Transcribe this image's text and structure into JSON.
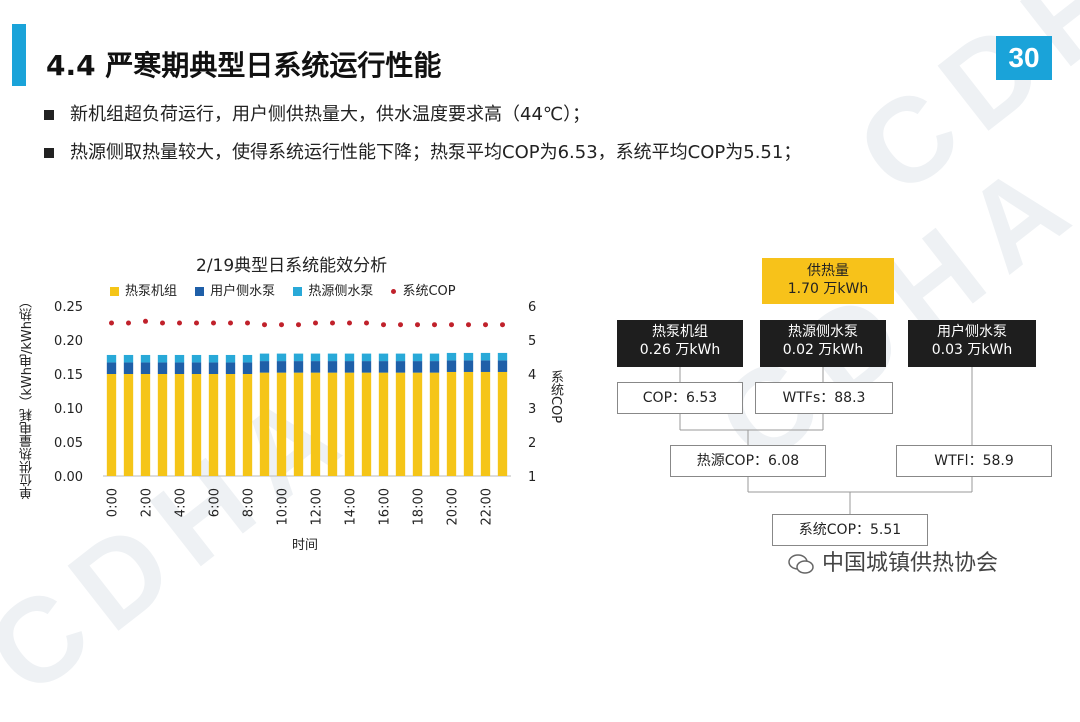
{
  "slide": {
    "title": "4.4 严寒期典型日系统运行性能",
    "page_number": "30",
    "watermark": "CDHA",
    "bullets": [
      "新机组超负荷运行，用户侧供热量大，供水温度要求高（44℃）；",
      "热源侧取热量较大，使得系统运行性能下降；热泵平均COP为6.53，系统平均COP为5.51；"
    ],
    "footer": "中国城镇供热协会",
    "accent_color": "#1aa3d9"
  },
  "chart_data": {
    "type": "bar",
    "title": "2/19典型日系统能效分析",
    "xlabel": "时间",
    "ylabel": "单位供热量电耗（kWh电/kWh热）",
    "y2label": "系统COP",
    "ylim": [
      0,
      0.25
    ],
    "y2lim": [
      1,
      6
    ],
    "yticks": [
      "0.00",
      "0.05",
      "0.10",
      "0.15",
      "0.20",
      "0.25"
    ],
    "y2ticks": [
      "1",
      "2",
      "3",
      "4",
      "5",
      "6"
    ],
    "categories": [
      "0:00",
      "1:00",
      "2:00",
      "3:00",
      "4:00",
      "5:00",
      "6:00",
      "7:00",
      "8:00",
      "9:00",
      "10:00",
      "11:00",
      "12:00",
      "13:00",
      "14:00",
      "15:00",
      "16:00",
      "17:00",
      "18:00",
      "19:00",
      "20:00",
      "21:00",
      "22:00",
      "23:00"
    ],
    "x_tick_labels": [
      "0:00",
      "2:00",
      "4:00",
      "6:00",
      "8:00",
      "10:00",
      "12:00",
      "14:00",
      "16:00",
      "18:00",
      "20:00",
      "22:00"
    ],
    "stacked": true,
    "series": [
      {
        "name": "热泵机组",
        "color": "#f5c518",
        "values": [
          0.15,
          0.15,
          0.15,
          0.15,
          0.15,
          0.15,
          0.15,
          0.15,
          0.15,
          0.152,
          0.152,
          0.152,
          0.152,
          0.152,
          0.152,
          0.152,
          0.152,
          0.152,
          0.152,
          0.152,
          0.153,
          0.153,
          0.153,
          0.153
        ]
      },
      {
        "name": "用户侧水泵",
        "color": "#1f5fa8",
        "values": [
          0.017,
          0.017,
          0.017,
          0.017,
          0.017,
          0.017,
          0.017,
          0.017,
          0.017,
          0.017,
          0.017,
          0.017,
          0.017,
          0.017,
          0.017,
          0.017,
          0.017,
          0.017,
          0.017,
          0.017,
          0.017,
          0.017,
          0.017,
          0.017
        ]
      },
      {
        "name": "热源侧水泵",
        "color": "#29a9d8",
        "values": [
          0.011,
          0.011,
          0.011,
          0.011,
          0.011,
          0.011,
          0.011,
          0.011,
          0.011,
          0.011,
          0.011,
          0.011,
          0.011,
          0.011,
          0.011,
          0.011,
          0.011,
          0.011,
          0.011,
          0.011,
          0.011,
          0.011,
          0.011,
          0.011
        ]
      },
      {
        "name": "系统COP",
        "color": "#c0212b",
        "type": "scatter",
        "axis": "right",
        "values": [
          5.5,
          5.5,
          5.55,
          5.5,
          5.5,
          5.5,
          5.5,
          5.5,
          5.5,
          5.45,
          5.45,
          5.45,
          5.5,
          5.5,
          5.5,
          5.5,
          5.45,
          5.45,
          5.45,
          5.45,
          5.45,
          5.45,
          5.45,
          5.45
        ]
      }
    ]
  },
  "diagram": {
    "supply": {
      "label": "供热量",
      "value": "1.70 万kWh"
    },
    "heat_pump": {
      "label": "热泵机组",
      "value": "0.26 万kWh"
    },
    "source_pump": {
      "label": "热源侧水泵",
      "value": "0.02 万kWh"
    },
    "user_pump": {
      "label": "用户侧水泵",
      "value": "0.03 万kWh"
    },
    "cop": "COP：6.53",
    "wtfs": "WTFs：88.3",
    "source_cop": "热源COP：6.08",
    "wtfl": "WTFl：58.9",
    "system_cop": "系统COP：5.51"
  }
}
